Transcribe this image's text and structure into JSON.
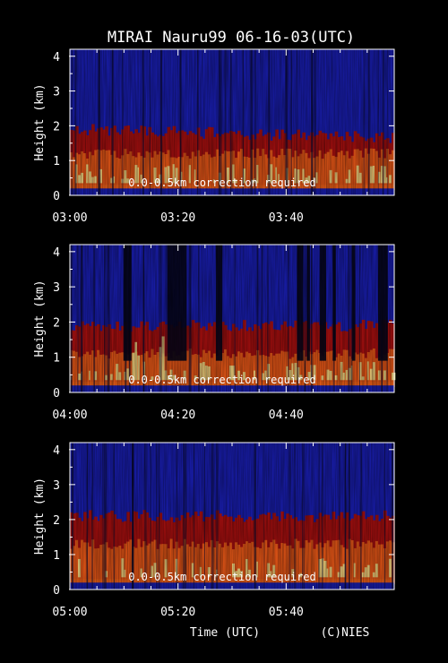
{
  "title": "MIRAI Nauru99 06-16-03(UTC)",
  "xlabel": "Time (UTC)",
  "credit": "(C)NIES",
  "colors": {
    "background": "#000000",
    "low_backscatter": "#1a1fb8",
    "mid_backscatter": "#b01010",
    "high_backscatter": "#ff6a1a",
    "peak_backscatter": "#ffffa0",
    "axis": "#ffffff"
  },
  "chart_data": [
    {
      "type": "heatmap",
      "ylabel": "Height (km)",
      "ylim": [
        0,
        4.2
      ],
      "yticks": [
        "0",
        "1",
        "2",
        "3",
        "4"
      ],
      "xlim": [
        "03:00",
        "04:00"
      ],
      "xticks": [
        "03:00",
        "03:20",
        "03:40"
      ],
      "annotation": "0.0-0.5km correction required",
      "layers": {
        "surface_top_km": 0.5,
        "mixed_top_km": 1.2,
        "cloud_top_km": 1.9
      },
      "high_gaps": []
    },
    {
      "type": "heatmap",
      "ylabel": "Height (km)",
      "ylim": [
        0,
        4.2
      ],
      "yticks": [
        "0",
        "1",
        "2",
        "3",
        "4"
      ],
      "xlim": [
        "04:00",
        "05:00"
      ],
      "xticks": [
        "04:00",
        "04:20",
        "04:40"
      ],
      "annotation": "0.0-0.5km correction required",
      "layers": {
        "surface_top_km": 0.4,
        "mixed_top_km": 1.1,
        "cloud_top_km": 1.9
      },
      "high_gaps": [
        [
          0.165,
          0.19
        ],
        [
          0.3,
          0.36
        ],
        [
          0.45,
          0.47
        ],
        [
          0.7,
          0.72
        ],
        [
          0.73,
          0.74
        ],
        [
          0.77,
          0.79
        ],
        [
          0.81,
          0.82
        ],
        [
          0.87,
          0.88
        ],
        [
          0.95,
          0.98
        ]
      ]
    },
    {
      "type": "heatmap",
      "ylabel": "Height (km)",
      "ylim": [
        0,
        4.2
      ],
      "yticks": [
        "0",
        "1",
        "2",
        "3",
        "4"
      ],
      "xlim": [
        "05:00",
        "06:00"
      ],
      "xticks": [
        "05:00",
        "05:20",
        "05:40"
      ],
      "annotation": "0.0-0.5km correction required",
      "layers": {
        "surface_top_km": 0.5,
        "mixed_top_km": 1.3,
        "cloud_top_km": 2.1
      },
      "high_gaps": []
    }
  ]
}
